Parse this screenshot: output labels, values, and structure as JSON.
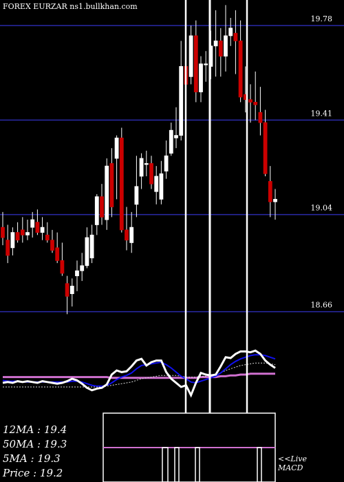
{
  "chart_data": {
    "type": "candlestick",
    "header": {
      "symbol": "FOREX  EURZAR",
      "site": "ns1.bullkhan.com"
    },
    "y_ticks": [
      19.78,
      19.41,
      19.04,
      18.66
    ],
    "ylim": [
      18.64,
      19.88
    ],
    "candles": [
      [
        18.99,
        19.05,
        18.92,
        18.95
      ],
      [
        18.94,
        19.0,
        18.85,
        18.88
      ],
      [
        18.91,
        18.99,
        18.88,
        18.97
      ],
      [
        18.97,
        19.01,
        18.93,
        18.94
      ],
      [
        18.98,
        19.03,
        18.93,
        18.96
      ],
      [
        18.96,
        19.02,
        18.94,
        18.97
      ],
      [
        18.99,
        19.05,
        18.95,
        19.02
      ],
      [
        19.01,
        19.06,
        18.96,
        18.97
      ],
      [
        18.97,
        19.03,
        18.94,
        18.99
      ],
      [
        18.96,
        19.01,
        18.93,
        18.94
      ],
      [
        18.94,
        18.98,
        18.89,
        18.9
      ],
      [
        18.91,
        18.97,
        18.85,
        18.86
      ],
      [
        18.86,
        18.93,
        18.8,
        18.81
      ],
      [
        18.77,
        18.8,
        18.65,
        18.72
      ],
      [
        18.73,
        18.79,
        18.68,
        18.76
      ],
      [
        18.8,
        18.86,
        18.74,
        18.82
      ],
      [
        18.82,
        18.89,
        18.78,
        18.84
      ],
      [
        18.84,
        18.99,
        18.83,
        18.95
      ],
      [
        18.87,
        19.0,
        18.85,
        18.96
      ],
      [
        19.0,
        19.12,
        18.96,
        19.11
      ],
      [
        19.11,
        19.16,
        19.0,
        19.03
      ],
      [
        19.02,
        19.26,
        18.98,
        19.23
      ],
      [
        19.24,
        19.3,
        19.03,
        19.07
      ],
      [
        19.26,
        19.35,
        19.1,
        19.34
      ],
      [
        19.34,
        19.38,
        18.97,
        18.98
      ],
      [
        18.98,
        19.07,
        18.9,
        18.94
      ],
      [
        18.93,
        19.05,
        18.89,
        18.99
      ],
      [
        19.08,
        19.27,
        19.03,
        19.15
      ],
      [
        19.19,
        19.28,
        19.14,
        19.26
      ],
      [
        19.24,
        19.29,
        19.19,
        19.24
      ],
      [
        19.24,
        19.27,
        19.14,
        19.16
      ],
      [
        19.13,
        19.23,
        19.08,
        19.19
      ],
      [
        19.1,
        19.25,
        19.08,
        19.2
      ],
      [
        19.21,
        19.33,
        19.18,
        19.27
      ],
      [
        19.28,
        19.4,
        19.27,
        19.37
      ],
      [
        19.34,
        19.46,
        19.3,
        19.35
      ],
      [
        19.35,
        19.72,
        19.33,
        19.62
      ],
      [
        19.62,
        19.73,
        19.48,
        19.55
      ],
      [
        19.58,
        19.78,
        19.55,
        19.74
      ],
      [
        19.74,
        19.8,
        19.48,
        19.52
      ],
      [
        19.52,
        19.66,
        19.48,
        19.63
      ],
      [
        19.63,
        19.68,
        19.56,
        19.63
      ],
      [
        19.62,
        19.76,
        19.57,
        19.7
      ],
      [
        19.7,
        19.84,
        19.58,
        19.72
      ],
      [
        19.72,
        19.77,
        19.58,
        19.66
      ],
      [
        19.66,
        19.86,
        19.6,
        19.74
      ],
      [
        19.74,
        19.81,
        19.7,
        19.77
      ],
      [
        19.75,
        19.84,
        19.59,
        19.72
      ],
      [
        19.72,
        19.8,
        19.48,
        19.5
      ],
      [
        19.51,
        19.62,
        19.44,
        19.49
      ],
      [
        19.49,
        19.55,
        19.4,
        19.48
      ],
      [
        19.48,
        19.6,
        19.41,
        19.47
      ],
      [
        19.44,
        19.54,
        19.35,
        19.4
      ],
      [
        19.4,
        19.45,
        19.19,
        19.2
      ],
      [
        19.17,
        19.23,
        19.03,
        19.09
      ],
      [
        19.09,
        19.14,
        19.02,
        19.1
      ]
    ],
    "indicators": {
      "price_line": [
        0.45,
        0.46,
        0.45,
        0.47,
        0.46,
        0.47,
        0.46,
        0.45,
        0.47,
        0.46,
        0.45,
        0.44,
        0.45,
        0.47,
        0.5,
        0.48,
        0.44,
        0.39,
        0.36,
        0.38,
        0.39,
        0.43,
        0.55,
        0.6,
        0.58,
        0.59,
        0.65,
        0.72,
        0.74,
        0.66,
        0.7,
        0.72,
        0.72,
        0.58,
        0.5,
        0.45,
        0.4,
        0.42,
        0.3,
        0.45,
        0.57,
        0.55,
        0.54,
        0.55,
        0.65,
        0.76,
        0.75,
        0.8,
        0.83,
        0.83,
        0.82,
        0.84,
        0.8,
        0.72,
        0.67,
        0.63
      ],
      "ma_fast": [
        0.48,
        0.47,
        0.47,
        0.47,
        0.46,
        0.46,
        0.46,
        0.46,
        0.46,
        0.46,
        0.46,
        0.46,
        0.46,
        0.46,
        0.47,
        0.47,
        0.46,
        0.44,
        0.42,
        0.41,
        0.41,
        0.42,
        0.45,
        0.49,
        0.52,
        0.54,
        0.57,
        0.62,
        0.66,
        0.67,
        0.68,
        0.69,
        0.7,
        0.67,
        0.63,
        0.58,
        0.53,
        0.5,
        0.46,
        0.45,
        0.47,
        0.49,
        0.51,
        0.53,
        0.57,
        0.62,
        0.67,
        0.71,
        0.74,
        0.76,
        0.78,
        0.79,
        0.79,
        0.78,
        0.76,
        0.74
      ],
      "ma_slow": [
        0.4,
        0.4,
        0.4,
        0.4,
        0.4,
        0.4,
        0.4,
        0.4,
        0.4,
        0.4,
        0.4,
        0.4,
        0.4,
        0.4,
        0.4,
        0.4,
        0.4,
        0.4,
        0.4,
        0.4,
        0.4,
        0.41,
        0.42,
        0.43,
        0.44,
        0.45,
        0.46,
        0.48,
        0.5,
        0.51,
        0.52,
        0.53,
        0.54,
        0.54,
        0.54,
        0.54,
        0.53,
        0.52,
        0.52,
        0.52,
        0.53,
        0.53,
        0.54,
        0.55,
        0.57,
        0.6,
        0.62,
        0.64,
        0.66,
        0.67,
        0.68,
        0.69,
        0.69,
        0.69,
        0.68,
        0.67
      ],
      "ma_long": [
        0.52,
        0.52,
        0.52,
        0.52,
        0.52,
        0.52,
        0.52,
        0.52,
        0.52,
        0.52,
        0.52,
        0.52,
        0.52,
        0.52,
        0.52,
        0.52,
        0.52,
        0.52,
        0.52,
        0.52,
        0.52,
        0.52,
        0.51,
        0.51,
        0.51,
        0.51,
        0.51,
        0.51,
        0.51,
        0.51,
        0.51,
        0.51,
        0.51,
        0.51,
        0.51,
        0.51,
        0.51,
        0.51,
        0.51,
        0.51,
        0.52,
        0.52,
        0.52,
        0.52,
        0.53,
        0.53,
        0.54,
        0.54,
        0.55,
        0.55,
        0.56,
        0.56,
        0.56,
        0.56,
        0.56,
        0.56
      ]
    },
    "legend": [
      {
        "label": "12MA : 19.4"
      },
      {
        "label": "50MA : 19.3"
      },
      {
        "label": "5MA : 19.3"
      },
      {
        "label": "Price   : 19.2"
      }
    ],
    "macd_label": [
      "<<Live",
      "MACD"
    ],
    "colors": {
      "up": "#ffffff",
      "down": "#cc0000",
      "grid": "#2a2aa8",
      "ma_fast": "#1111ee",
      "ma_long": "#d070d0",
      "price": "#ffffff"
    }
  }
}
